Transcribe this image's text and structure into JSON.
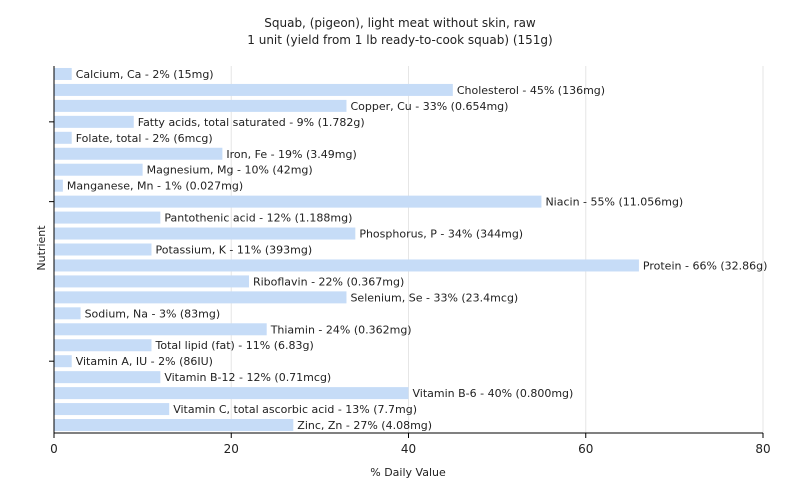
{
  "chart_data": {
    "type": "bar",
    "orientation": "horizontal",
    "title": "Squab, (pigeon), light meat without skin, raw",
    "subtitle": "1 unit (yield from 1 lb ready-to-cook squab) (151g)",
    "xlabel": "% Daily Value",
    "ylabel": "Nutrient",
    "xlim": [
      0,
      80
    ],
    "xticks": [
      0,
      20,
      40,
      60,
      80
    ],
    "grid": true,
    "bar_color": "#c6dcf7",
    "categories": [
      "Calcium, Ca",
      "Cholesterol",
      "Copper, Cu",
      "Fatty acids, total saturated",
      "Folate, total",
      "Iron, Fe",
      "Magnesium, Mg",
      "Manganese, Mn",
      "Niacin",
      "Pantothenic acid",
      "Phosphorus, P",
      "Potassium, K",
      "Protein",
      "Riboflavin",
      "Selenium, Se",
      "Sodium, Na",
      "Thiamin",
      "Total lipid (fat)",
      "Vitamin A, IU",
      "Vitamin B-12",
      "Vitamin B-6",
      "Vitamin C, total ascorbic acid",
      "Zinc, Zn"
    ],
    "values": [
      2,
      45,
      33,
      9,
      2,
      19,
      10,
      1,
      55,
      12,
      34,
      11,
      66,
      22,
      33,
      3,
      24,
      11,
      2,
      12,
      40,
      13,
      27
    ],
    "labels": [
      "Calcium, Ca - 2% (15mg)",
      "Cholesterol - 45% (136mg)",
      "Copper, Cu - 33% (0.654mg)",
      "Fatty acids, total saturated - 9% (1.782g)",
      "Folate, total - 2% (6mcg)",
      "Iron, Fe - 19% (3.49mg)",
      "Magnesium, Mg - 10% (42mg)",
      "Manganese, Mn - 1% (0.027mg)",
      "Niacin - 55% (11.056mg)",
      "Pantothenic acid - 12% (1.188mg)",
      "Phosphorus, P - 34% (344mg)",
      "Potassium, K - 11% (393mg)",
      "Protein - 66% (32.86g)",
      "Riboflavin - 22% (0.367mg)",
      "Selenium, Se - 33% (23.4mcg)",
      "Sodium, Na - 3% (83mg)",
      "Thiamin - 24% (0.362mg)",
      "Total lipid (fat) - 11% (6.83g)",
      "Vitamin A, IU - 2% (86IU)",
      "Vitamin B-12 - 12% (0.71mcg)",
      "Vitamin B-6 - 40% (0.800mg)",
      "Vitamin C, total ascorbic acid - 13% (7.7mg)",
      "Zinc, Zn - 27% (4.08mg)"
    ]
  }
}
